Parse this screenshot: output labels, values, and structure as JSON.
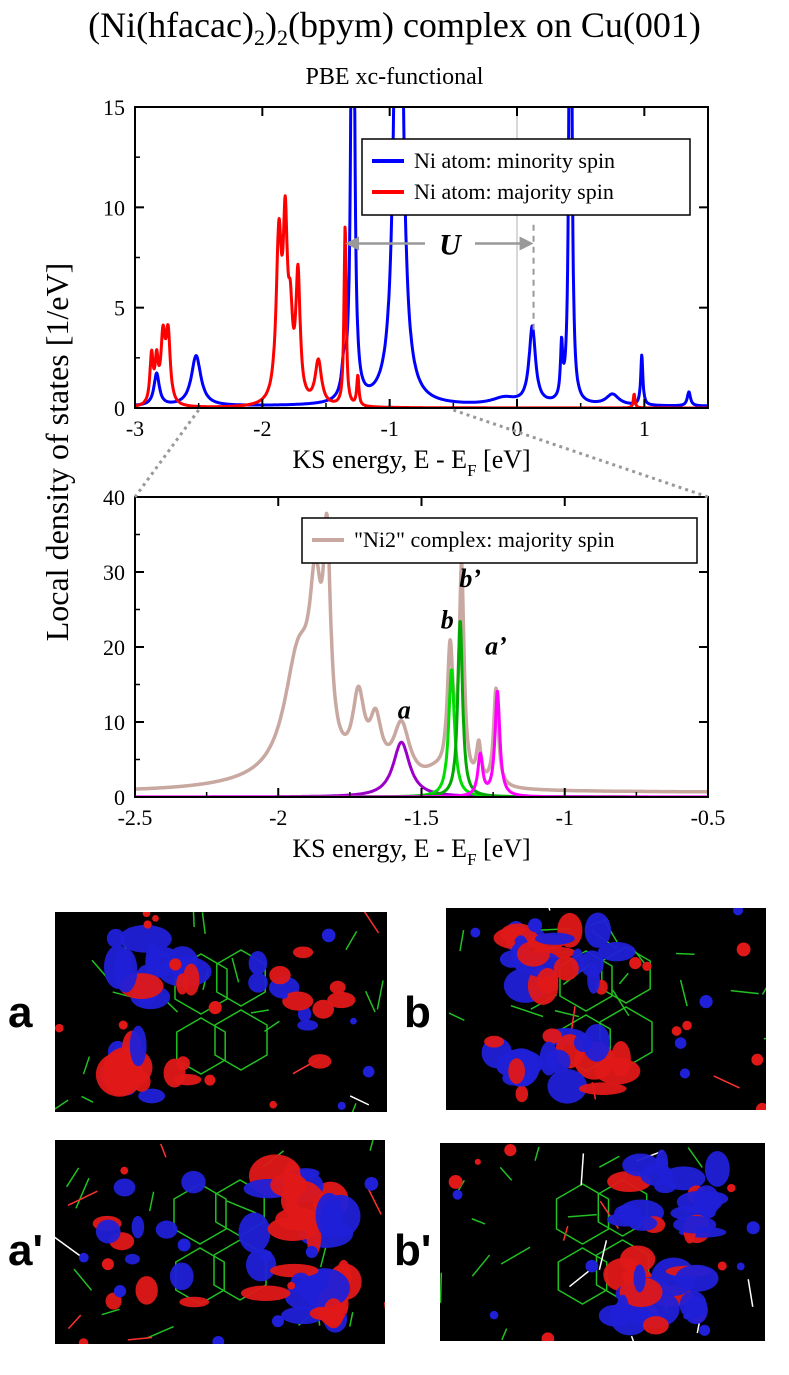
{
  "figure": {
    "title_main": "(Ni(hfacac)",
    "title_sub1": "2",
    "title_mid": ")",
    "title_sub2": "2",
    "title_rest": "(bpym) complex on Cu(001)",
    "subtitle": "PBE xc-functional",
    "shared_ylabel": "Local density of states [1/eV]"
  },
  "chart_data": [
    {
      "type": "line",
      "panel": "top",
      "xlabel_main": "KS energy, E - E",
      "xlabel_sub": "F",
      "xlabel_tail": " [eV]",
      "xlim": [
        -3,
        1.5
      ],
      "ylim": [
        0,
        15
      ],
      "xticks": [
        "-3",
        "-2",
        "-1",
        "0",
        "1"
      ],
      "xtick_values": [
        -3,
        -2,
        -1,
        0,
        1
      ],
      "yticks": [
        "0",
        "5",
        "10",
        "15"
      ],
      "ytick_values": [
        0,
        5,
        10,
        15
      ],
      "annotation_U": "U",
      "fermi_line_x": 0,
      "U_arrow": {
        "from": -1.35,
        "to": 0.13,
        "label_x": -0.55,
        "y": 8.2
      },
      "dashed_line": {
        "x": 0.13,
        "y_from": 3.9,
        "y_to": 9.2
      },
      "legend": [
        "Ni atom: minority spin",
        "Ni atom: majority spin"
      ],
      "series": [
        {
          "name": "Ni atom: minority spin",
          "color": "#0000ff",
          "baseline": 0.08,
          "peaks": [
            {
              "x": -2.83,
              "h": 1.6,
              "w": 0.025
            },
            {
              "x": -2.52,
              "h": 2.5,
              "w": 0.045
            },
            {
              "x": -1.36,
              "h": 1.5,
              "w": 0.02
            },
            {
              "x": -1.29,
              "h": 40,
              "w": 0.012
            },
            {
              "x": -0.93,
              "h": 40,
              "w": 0.03
            },
            {
              "x": -0.1,
              "h": 0.35,
              "w": 0.12
            },
            {
              "x": 0.12,
              "h": 3.85,
              "w": 0.03
            },
            {
              "x": 0.35,
              "h": 2.55,
              "w": 0.01
            },
            {
              "x": 0.42,
              "h": 40,
              "w": 0.01
            },
            {
              "x": 0.75,
              "h": 0.55,
              "w": 0.06
            },
            {
              "x": 0.98,
              "h": 2.5,
              "w": 0.01
            },
            {
              "x": 1.35,
              "h": 0.7,
              "w": 0.015
            }
          ]
        },
        {
          "name": "Ni atom: majority spin",
          "color": "#ff0000",
          "baseline": 0.0,
          "peaks": [
            {
              "x": -2.87,
              "h": 2.4,
              "w": 0.015
            },
            {
              "x": -2.83,
              "h": 2.0,
              "w": 0.015
            },
            {
              "x": -2.78,
              "h": 3.2,
              "w": 0.02
            },
            {
              "x": -2.74,
              "h": 3.4,
              "w": 0.02
            },
            {
              "x": -1.87,
              "h": 8.0,
              "w": 0.025
            },
            {
              "x": -1.82,
              "h": 8.0,
              "w": 0.02
            },
            {
              "x": -1.78,
              "h": 3.5,
              "w": 0.02
            },
            {
              "x": -1.72,
              "h": 6.2,
              "w": 0.02
            },
            {
              "x": -1.56,
              "h": 2.2,
              "w": 0.03
            },
            {
              "x": -1.35,
              "h": 9.0,
              "w": 0.01
            },
            {
              "x": -1.25,
              "h": 1.5,
              "w": 0.01
            },
            {
              "x": 0.92,
              "h": 0.7,
              "w": 0.008
            }
          ]
        }
      ]
    },
    {
      "type": "line",
      "panel": "bottom",
      "xlabel_main": "KS energy, E - E",
      "xlabel_sub": "F",
      "xlabel_tail": " [eV]",
      "xlim": [
        -2.5,
        -0.5
      ],
      "ylim": [
        0,
        40
      ],
      "xticks": [
        "-2.5",
        "-2",
        "-1.5",
        "-1",
        "-0.5"
      ],
      "xtick_values": [
        -2.5,
        -2,
        -1.5,
        -1,
        -0.5
      ],
      "yticks": [
        "0",
        "10",
        "20",
        "30",
        "40"
      ],
      "ytick_values": [
        0,
        10,
        20,
        30,
        40
      ],
      "legend": [
        "\"Ni2\" complex: majority spin"
      ],
      "peak_labels": [
        {
          "text": "a",
          "x": -1.56,
          "y": 10.5
        },
        {
          "text": "b",
          "x": -1.41,
          "y": 22.5
        },
        {
          "text": "b’",
          "x": -1.33,
          "y": 28.0
        },
        {
          "text": "a’",
          "x": -1.24,
          "y": 19.0
        }
      ],
      "series": [
        {
          "name": "\"Ni2\" complex: majority spin",
          "color": "#c8a8a0",
          "baseline": 0.6,
          "peaks": [
            {
              "x": -2.0,
              "h": 1.0,
              "w": 0.25
            },
            {
              "x": -1.93,
              "h": 16,
              "w": 0.06
            },
            {
              "x": -1.87,
              "h": 19,
              "w": 0.025
            },
            {
              "x": -1.83,
              "h": 26,
              "w": 0.015
            },
            {
              "x": -1.72,
              "h": 10,
              "w": 0.025
            },
            {
              "x": -1.66,
              "h": 7,
              "w": 0.025
            },
            {
              "x": -1.57,
              "h": 7.5,
              "w": 0.035
            },
            {
              "x": -1.45,
              "h": 1.5,
              "w": 0.05
            },
            {
              "x": -1.4,
              "h": 17,
              "w": 0.012
            },
            {
              "x": -1.36,
              "h": 28,
              "w": 0.01
            },
            {
              "x": -1.3,
              "h": 5,
              "w": 0.01
            },
            {
              "x": -1.24,
              "h": 13,
              "w": 0.01
            }
          ]
        },
        {
          "name": "a",
          "color": "#9c00c8",
          "baseline": 0.0,
          "peaks": [
            {
              "x": -1.57,
              "h": 7.3,
              "w": 0.035
            }
          ]
        },
        {
          "name": "b",
          "color": "#00dd00",
          "baseline": 0.0,
          "peaks": [
            {
              "x": -1.395,
              "h": 17,
              "w": 0.012
            }
          ]
        },
        {
          "name": "b’",
          "color": "#00aa00",
          "baseline": 0.0,
          "peaks": [
            {
              "x": -1.365,
              "h": 23.5,
              "w": 0.01
            }
          ]
        },
        {
          "name": "a’",
          "color": "#ff00ff",
          "baseline": 0.0,
          "peaks": [
            {
              "x": -1.295,
              "h": 5.5,
              "w": 0.01
            },
            {
              "x": -1.235,
              "h": 14,
              "w": 0.01
            }
          ]
        }
      ]
    }
  ],
  "orbital_panels": [
    {
      "label": "a"
    },
    {
      "label": "b"
    },
    {
      "label": "a'"
    },
    {
      "label": "b'"
    }
  ]
}
